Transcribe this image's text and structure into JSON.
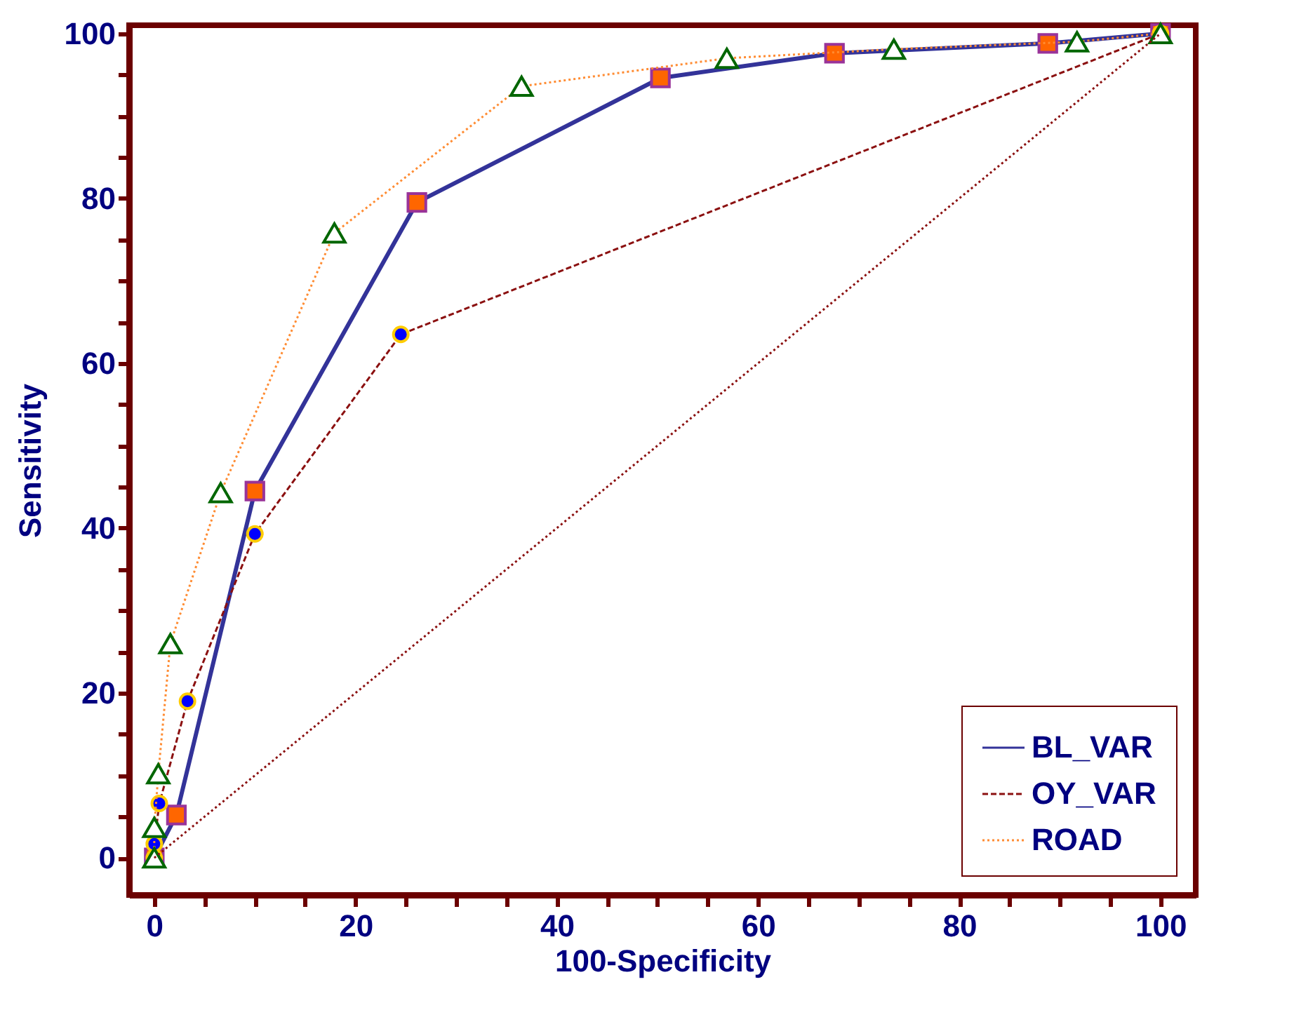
{
  "chart_data": {
    "type": "line",
    "xlabel": "100-Specificity",
    "ylabel": "Sensitivity",
    "xlim": [
      -2.5,
      103.5
    ],
    "ylim": [
      -4.5,
      101
    ],
    "xticks": [
      0,
      {
        "value": 5,
        "label": null
      },
      {
        "value": 10,
        "label": null
      },
      {
        "value": 15,
        "label": null
      },
      20,
      {
        "value": 25,
        "label": null
      },
      {
        "value": 30,
        "label": null
      },
      {
        "value": 35,
        "label": null
      },
      40,
      {
        "value": 45,
        "label": null
      },
      {
        "value": 50,
        "label": null
      },
      {
        "value": 55,
        "label": null
      },
      60,
      {
        "value": 65,
        "label": null
      },
      {
        "value": 70,
        "label": null
      },
      {
        "value": 75,
        "label": null
      },
      80,
      {
        "value": 85,
        "label": null
      },
      {
        "value": 90,
        "label": null
      },
      {
        "value": 95,
        "label": null
      },
      100
    ],
    "yticks": [
      0,
      {
        "value": 5,
        "label": null
      },
      {
        "value": 10,
        "label": null
      },
      {
        "value": 15,
        "label": null
      },
      20,
      {
        "value": 25,
        "label": null
      },
      {
        "value": 30,
        "label": null
      },
      {
        "value": 35,
        "label": null
      },
      40,
      {
        "value": 45,
        "label": null
      },
      {
        "value": 50,
        "label": null
      },
      {
        "value": 55,
        "label": null
      },
      60,
      {
        "value": 65,
        "label": null
      },
      {
        "value": 70,
        "label": null
      },
      {
        "value": 75,
        "label": null
      },
      80,
      {
        "value": 85,
        "label": null
      },
      {
        "value": 90,
        "label": null
      },
      {
        "value": 95,
        "label": null
      },
      100
    ],
    "grid": false,
    "legend": "bottom right",
    "series": [
      {
        "name": "BL_VAR",
        "color": "#333399",
        "line_style": "solid",
        "marker": "square",
        "x": [
          0,
          2.2,
          10,
          26.1,
          50.3,
          67.6,
          88.8,
          100
        ],
        "values": [
          0,
          5.2,
          44.5,
          79.5,
          94.6,
          97.6,
          98.8,
          100
        ]
      },
      {
        "name": "OY_VAR",
        "color": "#8b1010",
        "line_style": "dashed",
        "marker": "circle",
        "x": [
          0,
          0,
          0.5,
          3.3,
          10,
          24.5,
          100
        ],
        "values": [
          0,
          1.7,
          6.6,
          19,
          39.3,
          63.5,
          100
        ]
      },
      {
        "name": "ROAD",
        "color": "#ff8c33",
        "line_style": "dotted",
        "marker": "triangle",
        "x": [
          0,
          0,
          0.4,
          1.6,
          6.6,
          17.9,
          36.5,
          56.9,
          73.5,
          91.7,
          100
        ],
        "values": [
          0,
          3.7,
          10.2,
          26,
          44.3,
          75.8,
          93.6,
          97,
          98.1,
          99,
          100
        ]
      },
      {
        "color": "#8b1010",
        "line_style": "dotted",
        "marker": "none",
        "x": [
          0,
          100
        ],
        "values": [
          0,
          100
        ]
      }
    ]
  }
}
